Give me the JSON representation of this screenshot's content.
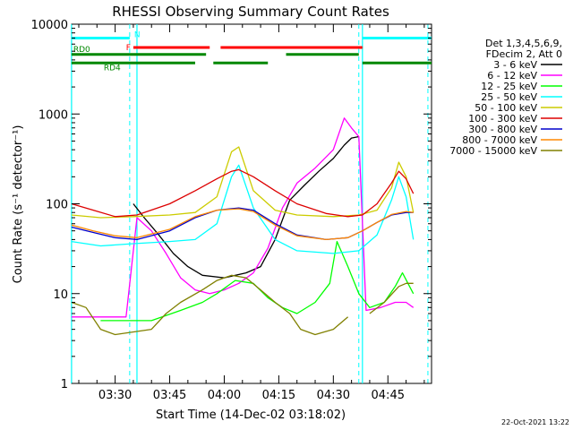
{
  "chart_data": {
    "type": "line",
    "title": "RHESSI Observing Summary Count Rates",
    "xlabel": "Start Time (14-Dec-02 03:18:02)",
    "ylabel": "Count Rate (s⁻¹ detector⁻¹)",
    "y_scale": "log",
    "ylim": [
      1,
      10000
    ],
    "xlim": [
      "03:18:02",
      "04:57:00"
    ],
    "x_unit": "time (UT)",
    "y_ticks": [
      {
        "value": 1,
        "label": "1"
      },
      {
        "value": 10,
        "label": "10"
      },
      {
        "value": 100,
        "label": "100"
      },
      {
        "value": 1000,
        "label": "1000"
      },
      {
        "value": 10000,
        "label": "10000"
      }
    ],
    "x_ticks": [
      {
        "value": "03:30",
        "label": "03:30"
      },
      {
        "value": "03:45",
        "label": "03:45"
      },
      {
        "value": "04:00",
        "label": "04:00"
      },
      {
        "value": "04:15",
        "label": "04:15"
      },
      {
        "value": "04:30",
        "label": "04:30"
      },
      {
        "value": "04:45",
        "label": "04:45"
      }
    ],
    "legend_header": [
      "Det 1,3,4,5,6,9,",
      "FDecim 2, Att 0"
    ],
    "legend_placement": "right",
    "series": [
      {
        "name": "3 - 6 keV",
        "color": "#000000",
        "x": [
          "03:18",
          "03:35",
          "03:38",
          "03:42",
          "03:46",
          "03:50",
          "03:54",
          "04:00",
          "04:06",
          "04:10",
          "04:14",
          "04:18",
          "04:22",
          "04:26",
          "04:30",
          "04:33",
          "04:35",
          "04:37"
        ],
        "y": [
          null,
          100,
          70,
          45,
          28,
          20,
          16,
          15,
          17,
          20,
          40,
          110,
          160,
          230,
          320,
          450,
          540,
          560
        ]
      },
      {
        "name": "6 - 12 keV",
        "color": "#ff00ff",
        "x": [
          "03:18",
          "03:26",
          "03:33",
          "03:36",
          "03:40",
          "03:44",
          "03:48",
          "03:52",
          "03:56",
          "04:00",
          "04:04",
          "04:08",
          "04:12",
          "04:16",
          "04:20",
          "04:25",
          "04:30",
          "04:33",
          "04:35",
          "04:37",
          "04:39",
          "04:43",
          "04:47",
          "04:50",
          "04:52"
        ],
        "y": [
          5.5,
          5.5,
          5.5,
          70,
          50,
          28,
          15,
          11,
          10,
          11,
          13,
          17,
          32,
          90,
          170,
          250,
          400,
          900,
          700,
          560,
          6.5,
          7,
          8,
          8,
          7
        ]
      },
      {
        "name": "12 - 25 keV",
        "color": "#00ff00",
        "x": [
          "03:18",
          "03:26",
          "03:30",
          "03:40",
          "03:48",
          "03:54",
          "03:58",
          "04:03",
          "04:08",
          "04:12",
          "04:16",
          "04:20",
          "04:25",
          "04:29",
          "04:31",
          "04:34",
          "04:37",
          "04:40",
          "04:44",
          "04:47",
          "04:49",
          "04:52"
        ],
        "y": [
          null,
          5,
          5,
          5,
          6.5,
          8,
          10,
          14,
          13,
          9,
          7,
          6,
          8,
          13,
          38,
          20,
          10,
          7,
          8,
          12,
          17,
          10
        ]
      },
      {
        "name": "25 - 50 keV",
        "color": "#00ffff",
        "x": [
          "03:18",
          "03:26",
          "03:35",
          "03:45",
          "03:52",
          "03:58",
          "04:02",
          "04:04",
          "04:08",
          "04:14",
          "04:20",
          "04:30",
          "04:37",
          "04:42",
          "04:46",
          "04:48",
          "04:50",
          "04:52"
        ],
        "y": [
          38,
          34,
          36,
          38,
          40,
          60,
          200,
          270,
          90,
          40,
          30,
          28,
          30,
          45,
          110,
          200,
          120,
          40
        ]
      },
      {
        "name": "50 - 100 keV",
        "color": "#cccc00",
        "x": [
          "03:18",
          "03:26",
          "03:35",
          "03:45",
          "03:52",
          "03:58",
          "04:02",
          "04:04",
          "04:08",
          "04:14",
          "04:20",
          "04:30",
          "04:37",
          "04:42",
          "04:46",
          "04:48",
          "04:50",
          "04:52"
        ],
        "y": [
          75,
          70,
          72,
          75,
          80,
          120,
          380,
          430,
          140,
          85,
          75,
          72,
          75,
          85,
          150,
          290,
          200,
          80
        ]
      },
      {
        "name": "100 - 300 keV",
        "color": "#dd0000",
        "x": [
          "03:18",
          "03:24",
          "03:30",
          "03:36",
          "03:45",
          "03:52",
          "03:58",
          "04:02",
          "04:04",
          "04:08",
          "04:14",
          "04:20",
          "04:28",
          "04:34",
          "04:38",
          "04:42",
          "04:46",
          "04:48",
          "04:50",
          "04:52"
        ],
        "y": [
          100,
          85,
          72,
          75,
          100,
          140,
          190,
          230,
          240,
          200,
          140,
          100,
          78,
          72,
          75,
          100,
          170,
          230,
          190,
          130
        ]
      },
      {
        "name": "300 - 800 keV",
        "color": "#0000cc",
        "x": [
          "03:18",
          "03:24",
          "03:30",
          "03:36",
          "03:45",
          "03:52",
          "03:58",
          "04:04",
          "04:08",
          "04:14",
          "04:20",
          "04:28",
          "04:34",
          "04:38",
          "04:42",
          "04:46",
          "04:50",
          "04:52"
        ],
        "y": [
          55,
          48,
          42,
          40,
          50,
          70,
          85,
          90,
          85,
          60,
          45,
          40,
          42,
          50,
          62,
          75,
          80,
          80
        ]
      },
      {
        "name": "800 - 7000 keV",
        "color": "#ff8800",
        "x": [
          "03:18",
          "03:24",
          "03:30",
          "03:36",
          "03:45",
          "03:52",
          "03:58",
          "04:04",
          "04:08",
          "04:14",
          "04:20",
          "04:28",
          "04:34",
          "04:38",
          "04:42",
          "04:46",
          "04:50",
          "04:52"
        ],
        "y": [
          58,
          50,
          44,
          42,
          52,
          72,
          85,
          88,
          82,
          58,
          44,
          40,
          42,
          50,
          62,
          76,
          82,
          80
        ]
      },
      {
        "name": "7000 - 15000 keV",
        "color": "#808000",
        "x": [
          "03:18",
          "03:22",
          "03:26",
          "03:30",
          "03:40",
          "03:44",
          "03:48",
          "03:54",
          "03:58",
          "04:02",
          "04:06",
          "04:10",
          "04:14",
          "04:18",
          "04:21",
          "04:25",
          "04:30",
          "04:34",
          "04:37",
          "04:40",
          "04:44",
          "04:48",
          "04:50",
          "04:52"
        ],
        "y": [
          8,
          7,
          4,
          3.5,
          4,
          6,
          8,
          11,
          14,
          16,
          15,
          11,
          8,
          6,
          4,
          3.5,
          4,
          5.5,
          null,
          6,
          8,
          12,
          13,
          13
        ]
      }
    ],
    "annotations": {
      "state_bars": [
        {
          "label": "N",
          "color": "#00ffff",
          "y_value": 7000,
          "segments": [
            [
              "03:18",
              "03:34"
            ],
            [
              "04:38",
              "04:57"
            ]
          ]
        },
        {
          "label": "F",
          "color": "#ff0000",
          "y_value": 5500,
          "segments": [
            [
              "03:35",
              "03:56"
            ],
            [
              "03:59",
              "04:38"
            ]
          ]
        },
        {
          "label": "RD0",
          "color": "#008800",
          "y_value": 4600,
          "segments": [
            [
              "03:18",
              "03:55"
            ],
            [
              "04:17",
              "04:37"
            ]
          ]
        },
        {
          "label": "RD4",
          "color": "#008800",
          "y_value": 3700,
          "segments": [
            [
              "03:18",
              "03:52"
            ],
            [
              "03:57",
              "04:12"
            ],
            [
              "04:38",
              "04:57"
            ]
          ]
        }
      ],
      "vertical_lines_solid": [
        "03:18",
        "03:36",
        "04:38"
      ],
      "vertical_lines_dashed": [
        "03:34",
        "04:37",
        "04:56"
      ],
      "vertical_line_color": "#00ffff",
      "footer_date": "22-Oct-2021 13:22"
    }
  }
}
